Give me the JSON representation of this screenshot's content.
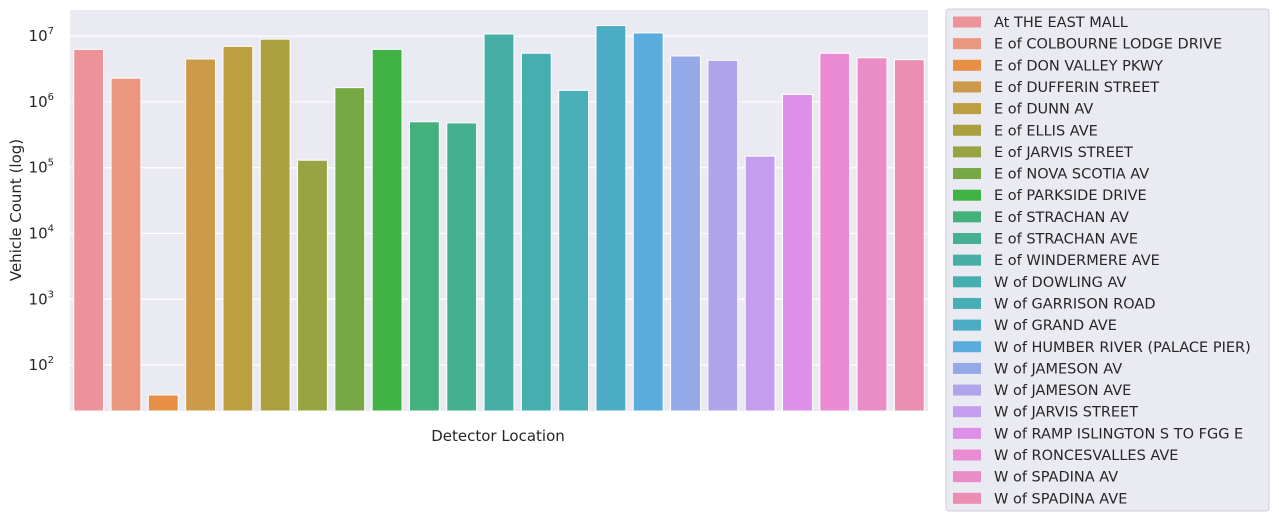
{
  "chart_data": {
    "type": "bar",
    "xlabel": "Detector Location",
    "ylabel": "Vehicle Count (log)",
    "yscale": "log",
    "ylim": [
      20,
      25000000
    ],
    "yticks": [
      {
        "base": "10",
        "exp": "2",
        "value": 100
      },
      {
        "base": "10",
        "exp": "3",
        "value": 1000
      },
      {
        "base": "10",
        "exp": "4",
        "value": 10000
      },
      {
        "base": "10",
        "exp": "5",
        "value": 100000
      },
      {
        "base": "10",
        "exp": "6",
        "value": 1000000
      },
      {
        "base": "10",
        "exp": "7",
        "value": 10000000
      }
    ],
    "grid": true,
    "legend_position": "right-outside",
    "categories": [
      "At THE EAST MALL",
      "E of COLBOURNE LODGE DRIVE",
      "E of DON VALLEY PKWY",
      "E of DUFFERIN STREET",
      "E of DUNN AV",
      "E of ELLIS AVE",
      "E of JARVIS STREET",
      "E of NOVA SCOTIA AV",
      "E of PARKSIDE DRIVE",
      "E of STRACHAN AV",
      "E of STRACHAN AVE",
      "E of WINDERMERE AVE",
      "W of DOWLING AV",
      "W of GARRISON ROAD",
      "W of GRAND AVE",
      "W of HUMBER RIVER  (PALACE PIER)",
      "W of JAMESON AV",
      "W of JAMESON AVE",
      "W of JARVIS STREET",
      "W of RAMP ISLINGTON S TO FGG E",
      "W of RONCESVALLES AVE",
      "W of SPADINA AV",
      "W of SPADINA AVE"
    ],
    "values": [
      6300000,
      2300000,
      35,
      4500000,
      7000000,
      9000000,
      130000,
      1650000,
      6300000,
      500000,
      480000,
      10800000,
      5500000,
      1500000,
      14500000,
      11200000,
      5000000,
      4300000,
      150000,
      1300000,
      5500000,
      4700000,
      4400000
    ],
    "colors": [
      "#ed9299",
      "#eb967f",
      "#e68f45",
      "#cb9a4a",
      "#bb9f41",
      "#ab9f3f",
      "#98a441",
      "#76a843",
      "#41b244",
      "#44b17c",
      "#45b08f",
      "#46aea4",
      "#45aeae",
      "#48afb7",
      "#4cacc4",
      "#59acdc",
      "#94a9e8",
      "#b0a4ea",
      "#c59ded",
      "#dd8fea",
      "#ea8bd4",
      "#ea8dc6",
      "#eb8eb2"
    ]
  }
}
